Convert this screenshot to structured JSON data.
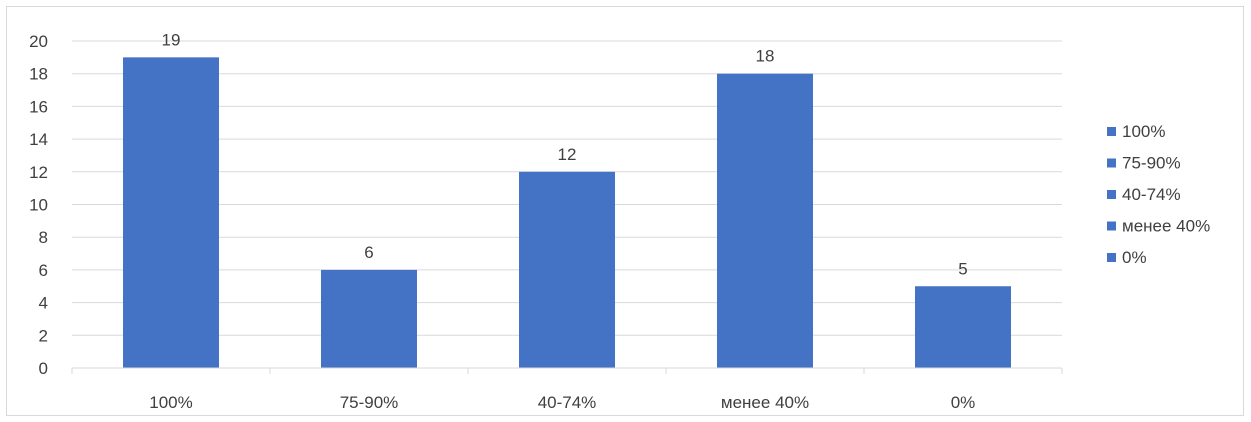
{
  "chart_data": {
    "type": "bar",
    "categories": [
      "100%",
      "75-90%",
      "40-74%",
      "менее 40%",
      "0%"
    ],
    "values": [
      19,
      6,
      12,
      18,
      5
    ],
    "ylim": [
      0,
      20
    ],
    "y_ticks": [
      0,
      2,
      4,
      6,
      8,
      10,
      12,
      14,
      16,
      18,
      20
    ],
    "grid": true,
    "legend": {
      "placement": "right",
      "entries": [
        "100%",
        "75-90%",
        "40-74%",
        "менее 40%",
        "0%"
      ]
    },
    "data_labels": true,
    "bar_color": "#4472c4"
  },
  "colors": {
    "bar": "#4472c4",
    "grid": "#d9d9d9",
    "text": "#404040"
  }
}
